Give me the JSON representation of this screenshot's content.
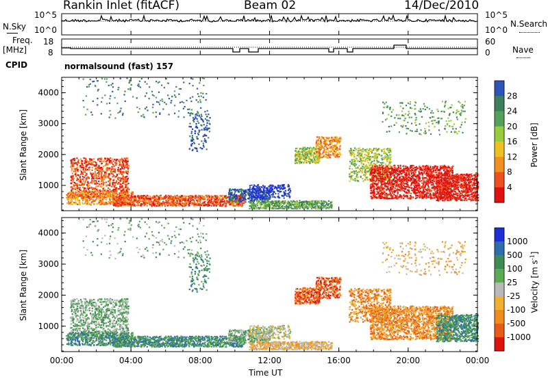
{
  "header": {
    "station": "Rankin Inlet (fitACF)",
    "beam": "Beam 02",
    "date": "14/Dec/2010"
  },
  "status_panels": {
    "nsky": {
      "label": "N.Sky",
      "ticks": [
        "10^5",
        "10^0"
      ]
    },
    "nsearch": {
      "label": "N.Search",
      "ticks": [
        "10^5",
        "10^0"
      ]
    },
    "freq": {
      "label_line1": "Freq.",
      "label_line2": "[MHz]",
      "ticks": [
        "18",
        "8"
      ]
    },
    "nave": {
      "label": "Nave",
      "ticks": [
        "60",
        "0"
      ]
    },
    "cpid": {
      "label": "CPID",
      "value": "normalsound (fast) 157"
    }
  },
  "chart_data": [
    {
      "type": "heatmap",
      "name": "power",
      "ylabel": "Slant Range [km]",
      "xlabel": "Time UT",
      "x_ticks": [
        "00:00",
        "04:00",
        "08:00",
        "12:00",
        "16:00",
        "20:00",
        "00:00"
      ],
      "y_ticks": [
        "1000",
        "2000",
        "3000",
        "4000"
      ],
      "ylim": [
        180,
        4500
      ],
      "xlim_hours": [
        0,
        24
      ],
      "colorbar": {
        "label": "Power [dB]",
        "ticks": [
          "4",
          "8",
          "12",
          "16",
          "20",
          "24",
          "28"
        ]
      }
    },
    {
      "type": "heatmap",
      "name": "velocity",
      "ylabel": "Slant Range [km]",
      "xlabel": "Time UT",
      "x_ticks": [
        "00:00",
        "04:00",
        "08:00",
        "12:00",
        "16:00",
        "20:00",
        "00:00"
      ],
      "y_ticks": [
        "1000",
        "2000",
        "3000",
        "4000"
      ],
      "ylim": [
        180,
        4500
      ],
      "xlim_hours": [
        0,
        24
      ],
      "colorbar": {
        "label_main": "Velocity [m s",
        "label_sup": "-1",
        "label_end": "]",
        "ticks": [
          "1000",
          "500",
          "100",
          "25",
          "-25",
          "-100",
          "-500",
          "-1000"
        ]
      }
    }
  ],
  "colors": {
    "power": [
      "#1f2fd8",
      "#2f55b8",
      "#3c7f5a",
      "#55a05a",
      "#9acb3a",
      "#f0c020",
      "#f09020",
      "#ee5020",
      "#e01010"
    ],
    "velocity": [
      "#1f2fd8",
      "#2d6fa8",
      "#3f8a55",
      "#5bab55",
      "#b8b8b8",
      "#f0b030",
      "#ee8c20",
      "#e85a18",
      "#e01010"
    ]
  }
}
